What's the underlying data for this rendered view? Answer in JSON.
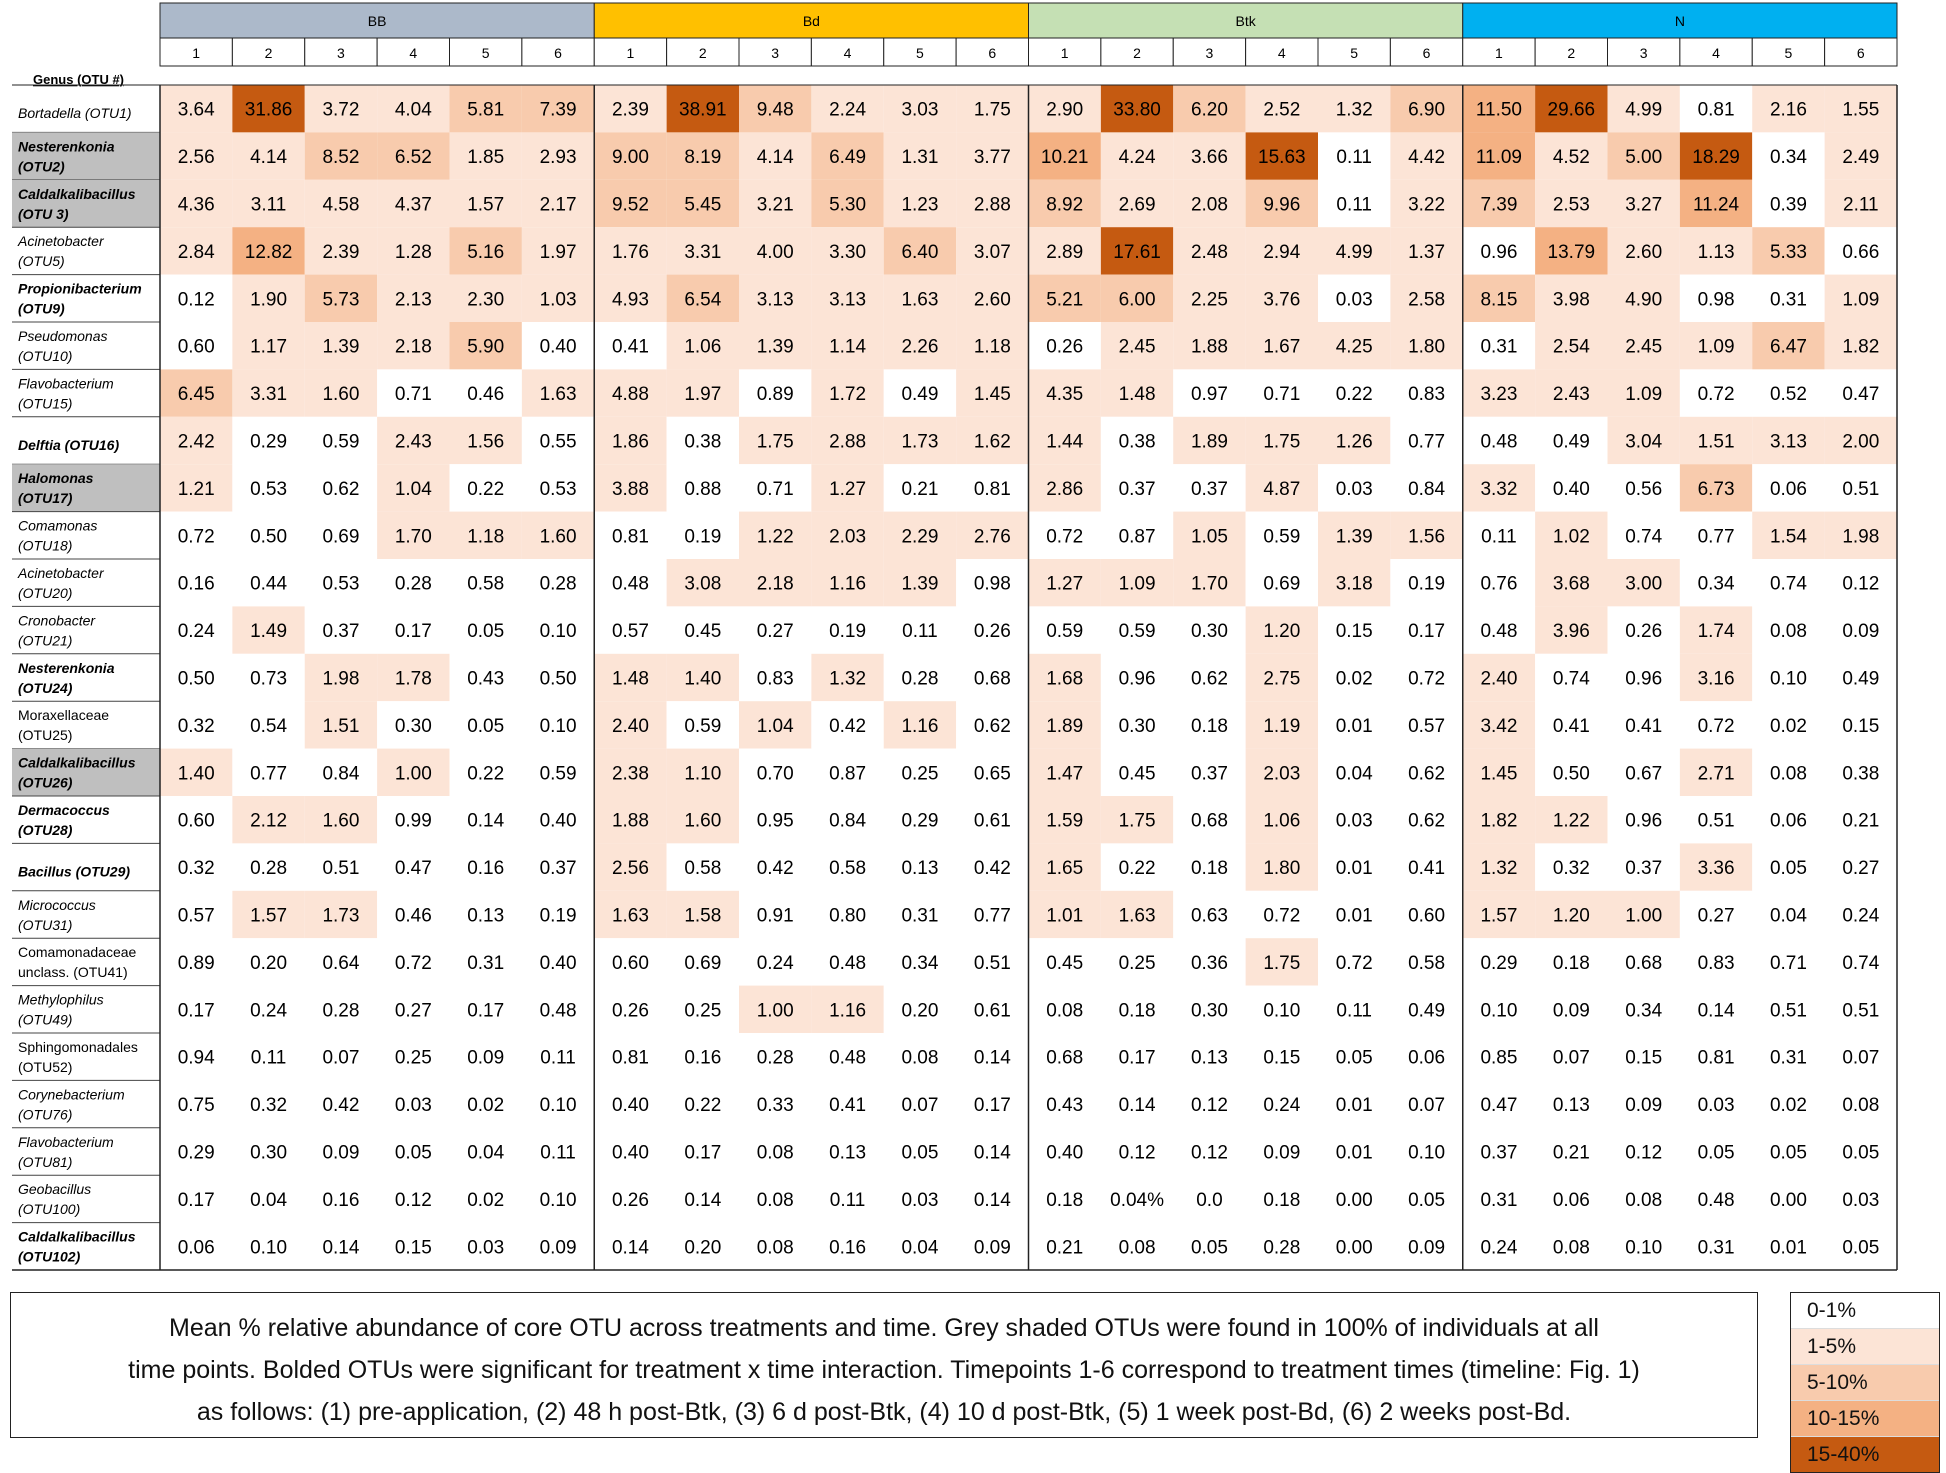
{
  "chart_data": {
    "type": "heatmap",
    "row_header": "Genus (OTU #)",
    "groups": [
      {
        "name": "BB",
        "color": "#acb9ca"
      },
      {
        "name": "Bd",
        "color": "#ffc000"
      },
      {
        "name": "Btk",
        "color": "#c5e0b4"
      },
      {
        "name": "N",
        "color": "#00b0f0"
      }
    ],
    "timepoints": [
      "1",
      "2",
      "3",
      "4",
      "5",
      "6"
    ],
    "rows": [
      {
        "l1": "Bortadella (OTU1)",
        "l2": "",
        "italic": true,
        "bold": false,
        "grey": false,
        "values": [
          "3.64",
          "31.86",
          "3.72",
          "4.04",
          "5.81",
          "7.39",
          "2.39",
          "38.91",
          "9.48",
          "2.24",
          "3.03",
          "1.75",
          "2.90",
          "33.80",
          "6.20",
          "2.52",
          "1.32",
          "6.90",
          "11.50",
          "29.66",
          "4.99",
          "0.81",
          "2.16",
          "1.55"
        ]
      },
      {
        "l1": "Nesterenkonia",
        "l2": "(OTU2)",
        "italic": true,
        "bold": true,
        "grey": true,
        "values": [
          "2.56",
          "4.14",
          "8.52",
          "6.52",
          "1.85",
          "2.93",
          "9.00",
          "8.19",
          "4.14",
          "6.49",
          "1.31",
          "3.77",
          "10.21",
          "4.24",
          "3.66",
          "15.63",
          "0.11",
          "4.42",
          "11.09",
          "4.52",
          "5.00",
          "18.29",
          "0.34",
          "2.49"
        ]
      },
      {
        "l1": "Caldalkalibacillus",
        "l2": "(OTU 3)",
        "italic": true,
        "bold": true,
        "grey": true,
        "values": [
          "4.36",
          "3.11",
          "4.58",
          "4.37",
          "1.57",
          "2.17",
          "9.52",
          "5.45",
          "3.21",
          "5.30",
          "1.23",
          "2.88",
          "8.92",
          "2.69",
          "2.08",
          "9.96",
          "0.11",
          "3.22",
          "7.39",
          "2.53",
          "3.27",
          "11.24",
          "0.39",
          "2.11"
        ]
      },
      {
        "l1": "Acinetobacter",
        "l2": "(OTU5)",
        "italic": true,
        "bold": false,
        "grey": false,
        "values": [
          "2.84",
          "12.82",
          "2.39",
          "1.28",
          "5.16",
          "1.97",
          "1.76",
          "3.31",
          "4.00",
          "3.30",
          "6.40",
          "3.07",
          "2.89",
          "17.61",
          "2.48",
          "2.94",
          "4.99",
          "1.37",
          "0.96",
          "13.79",
          "2.60",
          "1.13",
          "5.33",
          "0.66"
        ]
      },
      {
        "l1": "Propionibacterium",
        "l2": "(OTU9)",
        "italic": true,
        "bold": true,
        "grey": false,
        "values": [
          "0.12",
          "1.90",
          "5.73",
          "2.13",
          "2.30",
          "1.03",
          "4.93",
          "6.54",
          "3.13",
          "3.13",
          "1.63",
          "2.60",
          "5.21",
          "6.00",
          "2.25",
          "3.76",
          "0.03",
          "2.58",
          "8.15",
          "3.98",
          "4.90",
          "0.98",
          "0.31",
          "1.09"
        ]
      },
      {
        "l1": "Pseudomonas",
        "l2": "(OTU10)",
        "italic": true,
        "bold": false,
        "grey": false,
        "values": [
          "0.60",
          "1.17",
          "1.39",
          "2.18",
          "5.90",
          "0.40",
          "0.41",
          "1.06",
          "1.39",
          "1.14",
          "2.26",
          "1.18",
          "0.26",
          "2.45",
          "1.88",
          "1.67",
          "4.25",
          "1.80",
          "0.31",
          "2.54",
          "2.45",
          "1.09",
          "6.47",
          "1.82"
        ]
      },
      {
        "l1": "Flavobacterium",
        "l2": "(OTU15)",
        "italic": true,
        "bold": false,
        "grey": false,
        "values": [
          "6.45",
          "3.31",
          "1.60",
          "0.71",
          "0.46",
          "1.63",
          "4.88",
          "1.97",
          "0.89",
          "1.72",
          "0.49",
          "1.45",
          "4.35",
          "1.48",
          "0.97",
          "0.71",
          "0.22",
          "0.83",
          "3.23",
          "2.43",
          "1.09",
          "0.72",
          "0.52",
          "0.47"
        ]
      },
      {
        "l1": "Delftia (OTU16)",
        "l2": "",
        "italic": true,
        "bold": true,
        "grey": false,
        "values": [
          "2.42",
          "0.29",
          "0.59",
          "2.43",
          "1.56",
          "0.55",
          "1.86",
          "0.38",
          "1.75",
          "2.88",
          "1.73",
          "1.62",
          "1.44",
          "0.38",
          "1.89",
          "1.75",
          "1.26",
          "0.77",
          "0.48",
          "0.49",
          "3.04",
          "1.51",
          "3.13",
          "2.00"
        ]
      },
      {
        "l1": "Halomonas",
        "l2": "(OTU17)",
        "italic": true,
        "bold": true,
        "grey": true,
        "values": [
          "1.21",
          "0.53",
          "0.62",
          "1.04",
          "0.22",
          "0.53",
          "3.88",
          "0.88",
          "0.71",
          "1.27",
          "0.21",
          "0.81",
          "2.86",
          "0.37",
          "0.37",
          "4.87",
          "0.03",
          "0.84",
          "3.32",
          "0.40",
          "0.56",
          "6.73",
          "0.06",
          "0.51"
        ]
      },
      {
        "l1": "Comamonas",
        "l2": "(OTU18)",
        "italic": true,
        "bold": false,
        "grey": false,
        "values": [
          "0.72",
          "0.50",
          "0.69",
          "1.70",
          "1.18",
          "1.60",
          "0.81",
          "0.19",
          "1.22",
          "2.03",
          "2.29",
          "2.76",
          "0.72",
          "0.87",
          "1.05",
          "0.59",
          "1.39",
          "1.56",
          "0.11",
          "1.02",
          "0.74",
          "0.77",
          "1.54",
          "1.98"
        ]
      },
      {
        "l1": "Acinetobacter",
        "l2": "(OTU20)",
        "italic": true,
        "bold": false,
        "grey": false,
        "values": [
          "0.16",
          "0.44",
          "0.53",
          "0.28",
          "0.58",
          "0.28",
          "0.48",
          "3.08",
          "2.18",
          "1.16",
          "1.39",
          "0.98",
          "1.27",
          "1.09",
          "1.70",
          "0.69",
          "3.18",
          "0.19",
          "0.76",
          "3.68",
          "3.00",
          "0.34",
          "0.74",
          "0.12"
        ]
      },
      {
        "l1": "Cronobacter",
        "l2": "(OTU21)",
        "italic": true,
        "bold": false,
        "grey": false,
        "values": [
          "0.24",
          "1.49",
          "0.37",
          "0.17",
          "0.05",
          "0.10",
          "0.57",
          "0.45",
          "0.27",
          "0.19",
          "0.11",
          "0.26",
          "0.59",
          "0.59",
          "0.30",
          "1.20",
          "0.15",
          "0.17",
          "0.48",
          "3.96",
          "0.26",
          "1.74",
          "0.08",
          "0.09"
        ]
      },
      {
        "l1": "Nesterenkonia",
        "l2": "(OTU24)",
        "italic": true,
        "bold": true,
        "grey": false,
        "values": [
          "0.50",
          "0.73",
          "1.98",
          "1.78",
          "0.43",
          "0.50",
          "1.48",
          "1.40",
          "0.83",
          "1.32",
          "0.28",
          "0.68",
          "1.68",
          "0.96",
          "0.62",
          "2.75",
          "0.02",
          "0.72",
          "2.40",
          "0.74",
          "0.96",
          "3.16",
          "0.10",
          "0.49"
        ]
      },
      {
        "l1": "Moraxellaceae",
        "l2": "(OTU25)",
        "italic": false,
        "bold": false,
        "grey": false,
        "values": [
          "0.32",
          "0.54",
          "1.51",
          "0.30",
          "0.05",
          "0.10",
          "2.40",
          "0.59",
          "1.04",
          "0.42",
          "1.16",
          "0.62",
          "1.89",
          "0.30",
          "0.18",
          "1.19",
          "0.01",
          "0.57",
          "3.42",
          "0.41",
          "0.41",
          "0.72",
          "0.02",
          "0.15"
        ]
      },
      {
        "l1": "Caldalkalibacillus",
        "l2": "(OTU26)",
        "italic": true,
        "bold": true,
        "grey": true,
        "values": [
          "1.40",
          "0.77",
          "0.84",
          "1.00",
          "0.22",
          "0.59",
          "2.38",
          "1.10",
          "0.70",
          "0.87",
          "0.25",
          "0.65",
          "1.47",
          "0.45",
          "0.37",
          "2.03",
          "0.04",
          "0.62",
          "1.45",
          "0.50",
          "0.67",
          "2.71",
          "0.08",
          "0.38"
        ]
      },
      {
        "l1": "Dermacoccus",
        "l2": "(OTU28)",
        "italic": true,
        "bold": true,
        "grey": false,
        "values": [
          "0.60",
          "2.12",
          "1.60",
          "0.99",
          "0.14",
          "0.40",
          "1.88",
          "1.60",
          "0.95",
          "0.84",
          "0.29",
          "0.61",
          "1.59",
          "1.75",
          "0.68",
          "1.06",
          "0.03",
          "0.62",
          "1.82",
          "1.22",
          "0.96",
          "0.51",
          "0.06",
          "0.21"
        ]
      },
      {
        "l1": "Bacillus (OTU29)",
        "l2": "",
        "italic": true,
        "bold": true,
        "grey": false,
        "values": [
          "0.32",
          "0.28",
          "0.51",
          "0.47",
          "0.16",
          "0.37",
          "2.56",
          "0.58",
          "0.42",
          "0.58",
          "0.13",
          "0.42",
          "1.65",
          "0.22",
          "0.18",
          "1.80",
          "0.01",
          "0.41",
          "1.32",
          "0.32",
          "0.37",
          "3.36",
          "0.05",
          "0.27"
        ]
      },
      {
        "l1": "Micrococcus",
        "l2": "(OTU31)",
        "italic": true,
        "bold": false,
        "grey": false,
        "values": [
          "0.57",
          "1.57",
          "1.73",
          "0.46",
          "0.13",
          "0.19",
          "1.63",
          "1.58",
          "0.91",
          "0.80",
          "0.31",
          "0.77",
          "1.01",
          "1.63",
          "0.63",
          "0.72",
          "0.01",
          "0.60",
          "1.57",
          "1.20",
          "1.00",
          "0.27",
          "0.04",
          "0.24"
        ]
      },
      {
        "l1": "Comamonadaceae",
        "l2": "unclass. (OTU41)",
        "italic": false,
        "bold": false,
        "grey": false,
        "values": [
          "0.89",
          "0.20",
          "0.64",
          "0.72",
          "0.31",
          "0.40",
          "0.60",
          "0.69",
          "0.24",
          "0.48",
          "0.34",
          "0.51",
          "0.45",
          "0.25",
          "0.36",
          "1.75",
          "0.72",
          "0.58",
          "0.29",
          "0.18",
          "0.68",
          "0.83",
          "0.71",
          "0.74"
        ]
      },
      {
        "l1": "Methylophilus",
        "l2": "(OTU49)",
        "italic": true,
        "bold": false,
        "grey": false,
        "values": [
          "0.17",
          "0.24",
          "0.28",
          "0.27",
          "0.17",
          "0.48",
          "0.26",
          "0.25",
          "1.00",
          "1.16",
          "0.20",
          "0.61",
          "0.08",
          "0.18",
          "0.30",
          "0.10",
          "0.11",
          "0.49",
          "0.10",
          "0.09",
          "0.34",
          "0.14",
          "0.51",
          "0.51"
        ]
      },
      {
        "l1": "Sphingomonadales",
        "l2": "(OTU52)",
        "italic": false,
        "bold": false,
        "grey": false,
        "values": [
          "0.94",
          "0.11",
          "0.07",
          "0.25",
          "0.09",
          "0.11",
          "0.81",
          "0.16",
          "0.28",
          "0.48",
          "0.08",
          "0.14",
          "0.68",
          "0.17",
          "0.13",
          "0.15",
          "0.05",
          "0.06",
          "0.85",
          "0.07",
          "0.15",
          "0.81",
          "0.31",
          "0.07"
        ]
      },
      {
        "l1": "Corynebacterium",
        "l2": "(OTU76)",
        "italic": true,
        "bold": false,
        "grey": false,
        "values": [
          "0.75",
          "0.32",
          "0.42",
          "0.03",
          "0.02",
          "0.10",
          "0.40",
          "0.22",
          "0.33",
          "0.41",
          "0.07",
          "0.17",
          "0.43",
          "0.14",
          "0.12",
          "0.24",
          "0.01",
          "0.07",
          "0.47",
          "0.13",
          "0.09",
          "0.03",
          "0.02",
          "0.08"
        ]
      },
      {
        "l1": "Flavobacterium",
        "l2": "(OTU81)",
        "italic": true,
        "bold": false,
        "grey": false,
        "values": [
          "0.29",
          "0.30",
          "0.09",
          "0.05",
          "0.04",
          "0.11",
          "0.40",
          "0.17",
          "0.08",
          "0.13",
          "0.05",
          "0.14",
          "0.40",
          "0.12",
          "0.12",
          "0.09",
          "0.01",
          "0.10",
          "0.37",
          "0.21",
          "0.12",
          "0.05",
          "0.05",
          "0.05"
        ]
      },
      {
        "l1": "Geobacillus",
        "l2": "(OTU100)",
        "italic": true,
        "bold": false,
        "grey": false,
        "values": [
          "0.17",
          "0.04",
          "0.16",
          "0.12",
          "0.02",
          "0.10",
          "0.26",
          "0.14",
          "0.08",
          "0.11",
          "0.03",
          "0.14",
          "0.18",
          "0.04%",
          "0.0",
          "0.18",
          "0.00",
          "0.05",
          "0.31",
          "0.06",
          "0.08",
          "0.48",
          "0.00",
          "0.03"
        ]
      },
      {
        "l1": "Caldalkalibacillus",
        "l2": "(OTU102)",
        "italic": true,
        "bold": true,
        "grey": false,
        "values": [
          "0.06",
          "0.10",
          "0.14",
          "0.15",
          "0.03",
          "0.09",
          "0.14",
          "0.20",
          "0.08",
          "0.16",
          "0.04",
          "0.09",
          "0.21",
          "0.08",
          "0.05",
          "0.28",
          "0.00",
          "0.09",
          "0.24",
          "0.08",
          "0.10",
          "0.31",
          "0.01",
          "0.05"
        ]
      }
    ],
    "legend": [
      {
        "label": "0-1%",
        "min": 0,
        "max": 1,
        "color": "#ffffff"
      },
      {
        "label": "1-5%",
        "min": 1,
        "max": 5,
        "color": "#fce4d6"
      },
      {
        "label": "5-10%",
        "min": 5,
        "max": 10,
        "color": "#f8cbad"
      },
      {
        "label": "10-15%",
        "min": 10,
        "max": 15,
        "color": "#f4b183"
      },
      {
        "label": "15-40%",
        "min": 15,
        "max": 40,
        "color": "#c55a11"
      }
    ],
    "grey_color": "#bfbfbf"
  },
  "caption": {
    "line1": "Mean % relative abundance of core OTU across treatments and time. Grey shaded OTUs were found in 100% of individuals at all",
    "line2": "time points. Bolded OTUs were significant for treatment x time interaction. Timepoints 1-6 correspond to treatment times (timeline: Fig. 1)",
    "line3": "as follows: (1) pre-application, (2) 48 h post-Btk, (3) 6 d post-Btk, (4) 10 d post-Btk, (5) 1 week post-Bd, (6) 2 weeks post-Bd."
  }
}
